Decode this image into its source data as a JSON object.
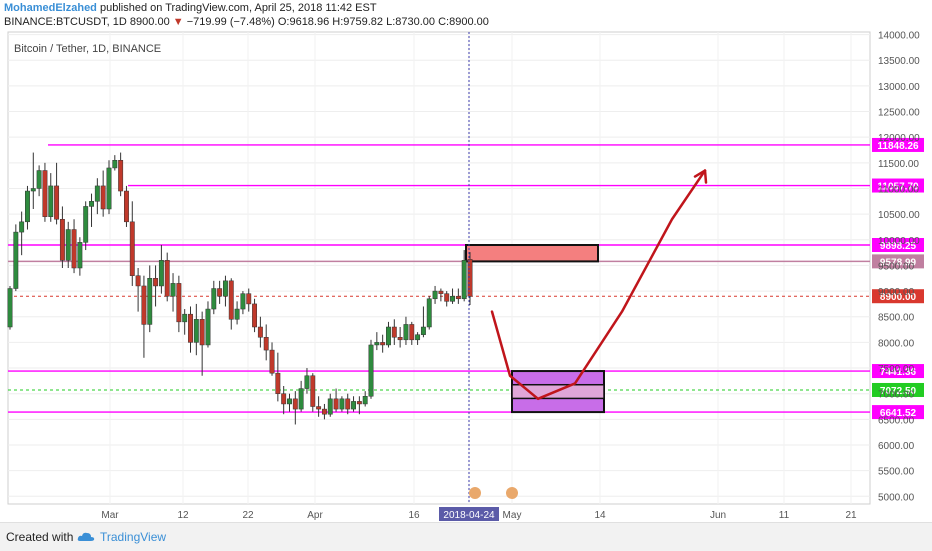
{
  "header": {
    "author": "MohamedElzahed",
    "published": "published on TradingView.com, April 25, 2018 11:42 EST",
    "symbol": "BINANCE:BTCUSDT, 1D",
    "last": "8900.00",
    "change": "−719.99 (−7.48%)",
    "ohlc": "O:9618.96 H:9759.82 L:8730.00 C:8900.00"
  },
  "footer": {
    "created_with": "Created with",
    "brand": "TradingView"
  },
  "colors": {
    "up": "#2e8b3e",
    "down": "#c0392b",
    "level_line": "#ff00ff",
    "resistance_box": "#f47f7f",
    "support_box": "#c86de8",
    "arrow": "#c0151b",
    "crosshair": "#3a3aa8",
    "last_price_line": "#e06060",
    "target_line": "#22cc22"
  },
  "chart_data": {
    "type": "candlestick",
    "title": "Bitcoin / Tether, 1D, BINANCE",
    "x_axis_ticks": [
      "Mar",
      "12",
      "22",
      "Apr",
      "16",
      "2018-04-24",
      "May",
      "14",
      "Jun",
      "11",
      "21"
    ],
    "x_axis_highlight": "2018-04-24",
    "y_axis_ticks": [
      5000,
      5500,
      6000,
      6500,
      7000,
      7500,
      8000,
      8500,
      9000,
      9500,
      10000,
      10500,
      11000,
      11500,
      12000,
      12500,
      13000,
      13500,
      14000
    ],
    "ylim": [
      4850,
      14050
    ],
    "candles": [
      [
        8300,
        9100,
        8250,
        9050
      ],
      [
        9050,
        10300,
        9000,
        10150
      ],
      [
        10150,
        10550,
        9700,
        10350
      ],
      [
        10350,
        11050,
        10200,
        10950
      ],
      [
        10950,
        11700,
        10600,
        11000
      ],
      [
        11000,
        11450,
        10850,
        11350
      ],
      [
        11350,
        11500,
        10350,
        10450
      ],
      [
        10450,
        11300,
        10350,
        11050
      ],
      [
        11050,
        11500,
        10300,
        10400
      ],
      [
        10400,
        10650,
        9450,
        9600
      ],
      [
        9600,
        10350,
        9450,
        10200
      ],
      [
        10200,
        10400,
        9350,
        9450
      ],
      [
        9450,
        10050,
        9300,
        9950
      ],
      [
        9950,
        10750,
        9800,
        10650
      ],
      [
        10650,
        10900,
        10250,
        10750
      ],
      [
        10750,
        11200,
        10500,
        11050
      ],
      [
        11050,
        11350,
        10450,
        10600
      ],
      [
        10600,
        11550,
        10500,
        11400
      ],
      [
        11400,
        11650,
        11350,
        11550
      ],
      [
        11550,
        11700,
        10850,
        10950
      ],
      [
        10950,
        11050,
        10250,
        10350
      ],
      [
        10350,
        10750,
        9100,
        9300
      ],
      [
        9300,
        9450,
        8600,
        9100
      ],
      [
        9100,
        9300,
        7700,
        8350
      ],
      [
        8350,
        9500,
        8200,
        9250
      ],
      [
        9250,
        9500,
        8700,
        9100
      ],
      [
        9100,
        9900,
        8950,
        9600
      ],
      [
        9600,
        9750,
        8800,
        8900
      ],
      [
        8900,
        9350,
        8600,
        9150
      ],
      [
        9150,
        9300,
        8200,
        8400
      ],
      [
        8400,
        8650,
        8150,
        8550
      ],
      [
        8550,
        8700,
        7800,
        8000
      ],
      [
        8000,
        8750,
        7750,
        8450
      ],
      [
        8450,
        8600,
        7350,
        7950
      ],
      [
        7950,
        8800,
        7900,
        8650
      ],
      [
        8650,
        9200,
        8550,
        9050
      ],
      [
        9050,
        9200,
        8750,
        8900
      ],
      [
        8900,
        9300,
        8700,
        9200
      ],
      [
        9200,
        9250,
        8250,
        8450
      ],
      [
        8450,
        8800,
        8350,
        8650
      ],
      [
        8650,
        9000,
        8550,
        8950
      ],
      [
        8950,
        9050,
        8600,
        8750
      ],
      [
        8750,
        8850,
        8200,
        8300
      ],
      [
        8300,
        8500,
        7900,
        8100
      ],
      [
        8100,
        8350,
        7650,
        7850
      ],
      [
        7850,
        8000,
        7350,
        7400
      ],
      [
        7400,
        7800,
        6850,
        7000
      ],
      [
        7000,
        7150,
        6600,
        6800
      ],
      [
        6800,
        7000,
        6650,
        6900
      ],
      [
        6900,
        7050,
        6400,
        6700
      ],
      [
        6700,
        7250,
        6650,
        7100
      ],
      [
        7100,
        7500,
        7000,
        7350
      ],
      [
        7350,
        7400,
        6650,
        6750
      ],
      [
        6750,
        6950,
        6550,
        6700
      ],
      [
        6700,
        6800,
        6500,
        6600
      ],
      [
        6600,
        7000,
        6550,
        6900
      ],
      [
        6900,
        7100,
        6650,
        6700
      ],
      [
        6700,
        6950,
        6650,
        6900
      ],
      [
        6900,
        7000,
        6600,
        6700
      ],
      [
        6700,
        6950,
        6650,
        6850
      ],
      [
        6850,
        6950,
        6600,
        6800
      ],
      [
        6800,
        7050,
        6750,
        6950
      ],
      [
        6950,
        8050,
        6900,
        7950
      ],
      [
        7950,
        8200,
        7850,
        8000
      ],
      [
        8000,
        8150,
        7800,
        7950
      ],
      [
        7950,
        8400,
        7900,
        8300
      ],
      [
        8300,
        8450,
        7950,
        8100
      ],
      [
        8100,
        8300,
        7900,
        8050
      ],
      [
        8050,
        8500,
        7950,
        8350
      ],
      [
        8350,
        8400,
        7950,
        8050
      ],
      [
        8050,
        8200,
        7950,
        8150
      ],
      [
        8150,
        8700,
        8100,
        8300
      ],
      [
        8300,
        8900,
        8250,
        8850
      ],
      [
        8850,
        9100,
        8750,
        9000
      ],
      [
        9000,
        9050,
        8800,
        8950
      ],
      [
        8950,
        9000,
        8700,
        8800
      ],
      [
        8800,
        9050,
        8750,
        8900
      ],
      [
        8900,
        9050,
        8750,
        8850
      ],
      [
        8850,
        9800,
        8800,
        9600
      ],
      [
        9618.96,
        9759.82,
        8730,
        8900
      ]
    ],
    "levels": [
      {
        "value": 11848.26,
        "label": "11848.26",
        "color": "#ff00ff"
      },
      {
        "value": 11057.7,
        "label": "11057.70",
        "color": "#ff00ff"
      },
      {
        "value": 9898.25,
        "label": "9898.25",
        "color": "#ff00ff"
      },
      {
        "value": 9578.99,
        "label": "9578.99",
        "color": "#c07fa0"
      },
      {
        "value": 8900.0,
        "label": "8900.00",
        "color": "#d9382e"
      },
      {
        "value": 7441.36,
        "label": "7441.36",
        "color": "#ff00ff"
      },
      {
        "value": 7072.5,
        "label": "7072.50",
        "color": "#22cc22"
      },
      {
        "value": 6641.52,
        "label": "6641.52",
        "color": "#ff00ff"
      }
    ],
    "resistance_box": {
      "low": 9578.99,
      "high": 9898.25
    },
    "support_box": {
      "low": 6641.52,
      "high": 7441.36
    },
    "projection_path": [
      [
        8600,
        0
      ],
      [
        7350,
        1
      ],
      [
        6900,
        2
      ],
      [
        7200,
        3
      ],
      [
        8600,
        4
      ],
      [
        10400,
        5
      ],
      [
        11350,
        6
      ]
    ]
  }
}
